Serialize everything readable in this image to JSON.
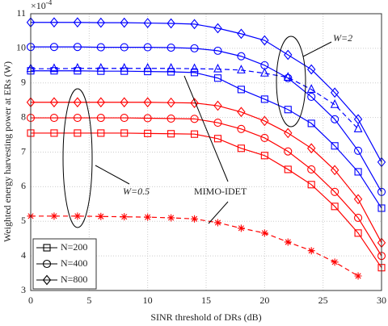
{
  "chart_data": {
    "type": "line",
    "xlabel": "SINR threshold of DRs (dB)",
    "ylabel": "Weighted energy harvesting power at ERs (W)",
    "multiplier": {
      "base": "×10",
      "exponent": "-4"
    },
    "x": [
      0,
      2,
      4,
      6,
      8,
      10,
      12,
      14,
      16,
      18,
      20,
      22,
      24,
      26,
      28,
      30
    ],
    "series": [
      {
        "color": "#0000ff",
        "marker": "diamond",
        "dash": false,
        "values": [
          10.75,
          10.75,
          10.75,
          10.74,
          10.74,
          10.73,
          10.72,
          10.7,
          10.58,
          10.42,
          10.23,
          9.81,
          9.39,
          8.72,
          7.95,
          6.71
        ]
      },
      {
        "color": "#0000ff",
        "marker": "circle",
        "dash": false,
        "values": [
          10.04,
          10.04,
          10.04,
          10.03,
          10.03,
          10.03,
          10.02,
          10.0,
          9.93,
          9.77,
          9.51,
          9.14,
          8.6,
          7.95,
          7.04,
          5.85
        ]
      },
      {
        "color": "#0000ff",
        "marker": "square",
        "dash": false,
        "values": [
          9.35,
          9.35,
          9.35,
          9.34,
          9.34,
          9.33,
          9.32,
          9.3,
          9.14,
          8.81,
          8.53,
          8.23,
          7.83,
          7.18,
          6.43,
          5.38
        ]
      },
      {
        "color": "#0000ff",
        "marker": "triangle",
        "dash": true,
        "values": [
          9.41,
          9.41,
          9.42,
          9.42,
          9.42,
          9.42,
          9.42,
          9.41,
          9.4,
          9.37,
          9.28,
          9.16,
          8.81,
          8.37,
          7.67,
          null
        ]
      },
      {
        "color": "#ff0000",
        "marker": "diamond",
        "dash": false,
        "values": [
          8.44,
          8.44,
          8.44,
          8.44,
          8.44,
          8.44,
          8.43,
          8.42,
          8.34,
          8.16,
          7.9,
          7.55,
          7.11,
          6.48,
          5.64,
          4.38
        ]
      },
      {
        "color": "#ff0000",
        "marker": "circle",
        "dash": false,
        "values": [
          7.99,
          7.99,
          7.99,
          7.99,
          7.99,
          7.98,
          7.97,
          7.96,
          7.85,
          7.67,
          7.41,
          7.02,
          6.5,
          5.85,
          5.1,
          4.0
        ]
      },
      {
        "color": "#ff0000",
        "marker": "square",
        "dash": false,
        "values": [
          7.55,
          7.55,
          7.55,
          7.55,
          7.55,
          7.54,
          7.53,
          7.52,
          7.39,
          7.11,
          6.9,
          6.5,
          6.06,
          5.43,
          4.66,
          3.66
        ]
      },
      {
        "color": "#ff0000",
        "marker": "star",
        "dash": true,
        "values": [
          5.15,
          5.15,
          5.15,
          5.14,
          5.13,
          5.12,
          5.1,
          5.07,
          4.96,
          4.8,
          4.66,
          4.4,
          4.15,
          3.82,
          3.42,
          null
        ]
      }
    ],
    "legend": [
      {
        "label": "N=200",
        "marker": "square"
      },
      {
        "label": "N=400",
        "marker": "circle"
      },
      {
        "label": "N=800",
        "marker": "diamond"
      }
    ],
    "legend_position": "lower left",
    "annotations": [
      "W=2",
      "W=0.5",
      "MIMO-IDET"
    ],
    "xlim": [
      0,
      30
    ],
    "xticks": [
      0,
      5,
      10,
      15,
      20,
      25,
      30
    ],
    "ylim": [
      3,
      11
    ],
    "yticks": [
      3,
      4,
      5,
      6,
      7,
      8,
      9,
      10,
      11
    ],
    "grid": true
  }
}
